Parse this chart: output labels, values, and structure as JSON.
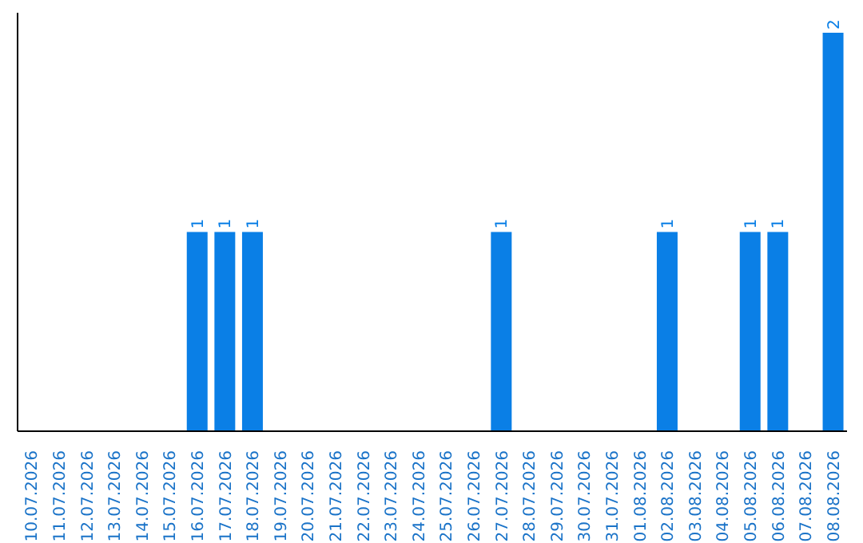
{
  "chart_data": {
    "type": "bar",
    "categories": [
      "10.07.2026",
      "11.07.2026",
      "12.07.2026",
      "13.07.2026",
      "14.07.2026",
      "15.07.2026",
      "16.07.2026",
      "17.07.2026",
      "18.07.2026",
      "19.07.2026",
      "20.07.2026",
      "21.07.2026",
      "22.07.2026",
      "23.07.2026",
      "24.07.2026",
      "25.07.2026",
      "26.07.2026",
      "27.07.2026",
      "28.07.2026",
      "29.07.2026",
      "30.07.2026",
      "31.07.2026",
      "01.08.2026",
      "02.08.2026",
      "03.08.2026",
      "04.08.2026",
      "05.08.2026",
      "06.08.2026",
      "07.08.2026",
      "08.08.2026"
    ],
    "values": [
      0,
      0,
      0,
      0,
      0,
      0,
      1,
      1,
      1,
      0,
      0,
      0,
      0,
      0,
      0,
      0,
      0,
      1,
      0,
      0,
      0,
      0,
      0,
      1,
      0,
      0,
      1,
      1,
      0,
      2
    ],
    "value_labels": [
      null,
      null,
      null,
      null,
      null,
      null,
      "1",
      "1",
      "1",
      null,
      null,
      null,
      null,
      null,
      null,
      null,
      null,
      "1",
      null,
      null,
      null,
      null,
      null,
      "1",
      null,
      null,
      "1",
      "1",
      null,
      "2"
    ],
    "color": "#0a7fe6"
  }
}
